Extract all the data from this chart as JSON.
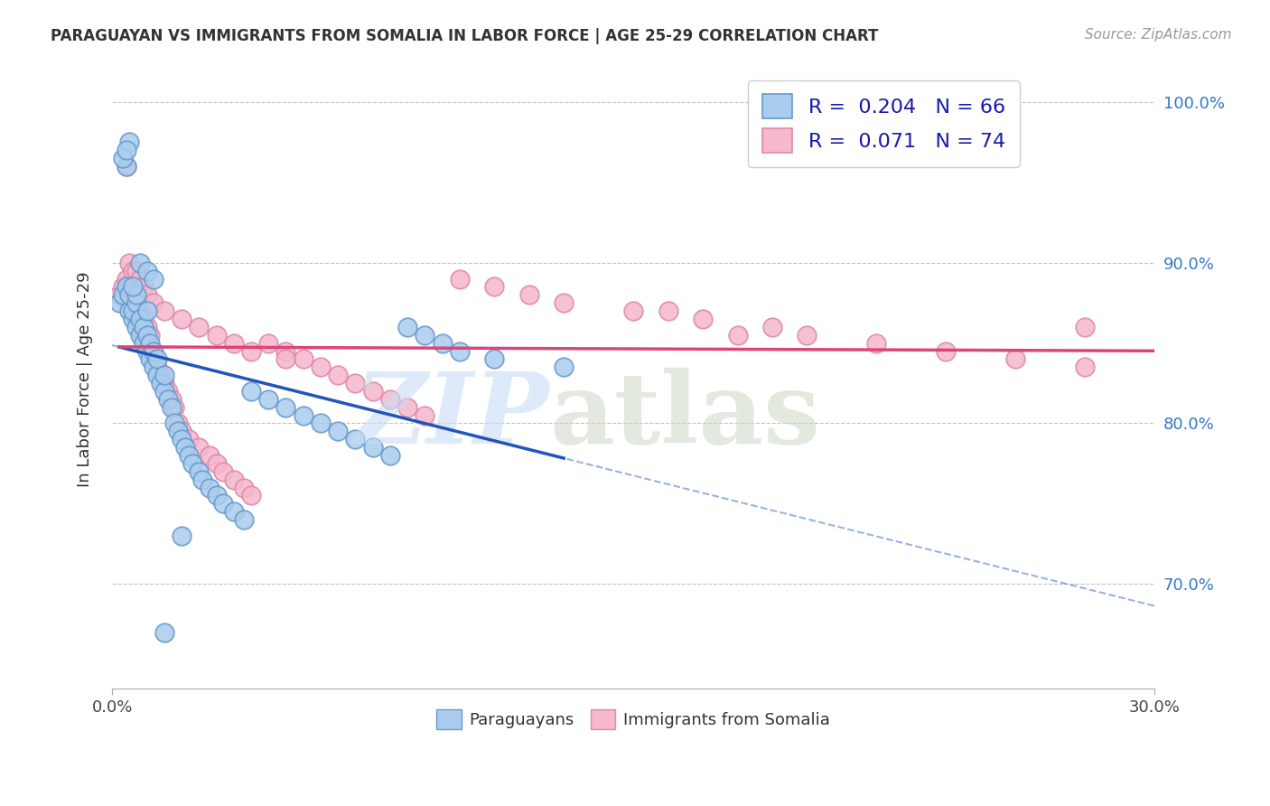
{
  "title": "PARAGUAYAN VS IMMIGRANTS FROM SOMALIA IN LABOR FORCE | AGE 25-29 CORRELATION CHART",
  "source": "Source: ZipAtlas.com",
  "ylabel": "In Labor Force | Age 25-29",
  "xlim": [
    0.0,
    0.3
  ],
  "ylim": [
    0.635,
    1.02
  ],
  "ytick_positions": [
    0.7,
    0.8,
    0.9,
    1.0
  ],
  "ytick_labels": [
    "70.0%",
    "80.0%",
    "90.0%",
    "100.0%"
  ],
  "blue_R": 0.204,
  "blue_N": 66,
  "pink_R": 0.071,
  "pink_N": 74,
  "blue_color": "#aaccee",
  "blue_edge": "#6699cc",
  "pink_color": "#f5b8cc",
  "pink_edge": "#dd88aa",
  "blue_line_color": "#2255bb",
  "pink_line_color": "#dd4477",
  "background_color": "#ffffff",
  "grid_color": "#bbbbcc",
  "blue_x": [
    0.002,
    0.003,
    0.004,
    0.004,
    0.005,
    0.005,
    0.005,
    0.006,
    0.006,
    0.007,
    0.007,
    0.007,
    0.008,
    0.008,
    0.009,
    0.009,
    0.01,
    0.01,
    0.01,
    0.011,
    0.011,
    0.012,
    0.012,
    0.013,
    0.013,
    0.014,
    0.015,
    0.015,
    0.016,
    0.017,
    0.018,
    0.019,
    0.02,
    0.021,
    0.022,
    0.023,
    0.025,
    0.026,
    0.028,
    0.03,
    0.032,
    0.035,
    0.038,
    0.04,
    0.045,
    0.05,
    0.055,
    0.06,
    0.065,
    0.07,
    0.075,
    0.08,
    0.085,
    0.09,
    0.095,
    0.1,
    0.11,
    0.13,
    0.015,
    0.02,
    0.008,
    0.01,
    0.012,
    0.006,
    0.003,
    0.004
  ],
  "blue_y": [
    0.875,
    0.88,
    0.885,
    0.96,
    0.87,
    0.88,
    0.975,
    0.865,
    0.87,
    0.86,
    0.875,
    0.88,
    0.855,
    0.865,
    0.85,
    0.86,
    0.845,
    0.855,
    0.87,
    0.84,
    0.85,
    0.835,
    0.845,
    0.83,
    0.84,
    0.825,
    0.82,
    0.83,
    0.815,
    0.81,
    0.8,
    0.795,
    0.79,
    0.785,
    0.78,
    0.775,
    0.77,
    0.765,
    0.76,
    0.755,
    0.75,
    0.745,
    0.74,
    0.82,
    0.815,
    0.81,
    0.805,
    0.8,
    0.795,
    0.79,
    0.785,
    0.78,
    0.86,
    0.855,
    0.85,
    0.845,
    0.84,
    0.835,
    0.67,
    0.73,
    0.9,
    0.895,
    0.89,
    0.885,
    0.965,
    0.97
  ],
  "pink_x": [
    0.002,
    0.003,
    0.004,
    0.004,
    0.005,
    0.005,
    0.006,
    0.006,
    0.007,
    0.007,
    0.008,
    0.008,
    0.009,
    0.009,
    0.01,
    0.01,
    0.011,
    0.011,
    0.012,
    0.013,
    0.014,
    0.015,
    0.016,
    0.017,
    0.018,
    0.019,
    0.02,
    0.022,
    0.025,
    0.028,
    0.03,
    0.032,
    0.035,
    0.038,
    0.04,
    0.045,
    0.05,
    0.055,
    0.06,
    0.065,
    0.07,
    0.075,
    0.08,
    0.085,
    0.09,
    0.1,
    0.11,
    0.12,
    0.13,
    0.15,
    0.16,
    0.17,
    0.19,
    0.2,
    0.22,
    0.24,
    0.26,
    0.28,
    0.005,
    0.006,
    0.007,
    0.008,
    0.009,
    0.01,
    0.012,
    0.015,
    0.02,
    0.025,
    0.03,
    0.035,
    0.04,
    0.05,
    0.18,
    0.28
  ],
  "pink_y": [
    0.88,
    0.885,
    0.89,
    0.96,
    0.875,
    0.885,
    0.87,
    0.88,
    0.865,
    0.875,
    0.86,
    0.87,
    0.855,
    0.865,
    0.85,
    0.86,
    0.845,
    0.855,
    0.84,
    0.835,
    0.83,
    0.825,
    0.82,
    0.815,
    0.81,
    0.8,
    0.795,
    0.79,
    0.785,
    0.78,
    0.775,
    0.77,
    0.765,
    0.76,
    0.755,
    0.85,
    0.845,
    0.84,
    0.835,
    0.83,
    0.825,
    0.82,
    0.815,
    0.81,
    0.805,
    0.89,
    0.885,
    0.88,
    0.875,
    0.87,
    0.87,
    0.865,
    0.86,
    0.855,
    0.85,
    0.845,
    0.84,
    0.835,
    0.9,
    0.895,
    0.895,
    0.89,
    0.885,
    0.88,
    0.875,
    0.87,
    0.865,
    0.86,
    0.855,
    0.85,
    0.845,
    0.84,
    0.855,
    0.86
  ]
}
